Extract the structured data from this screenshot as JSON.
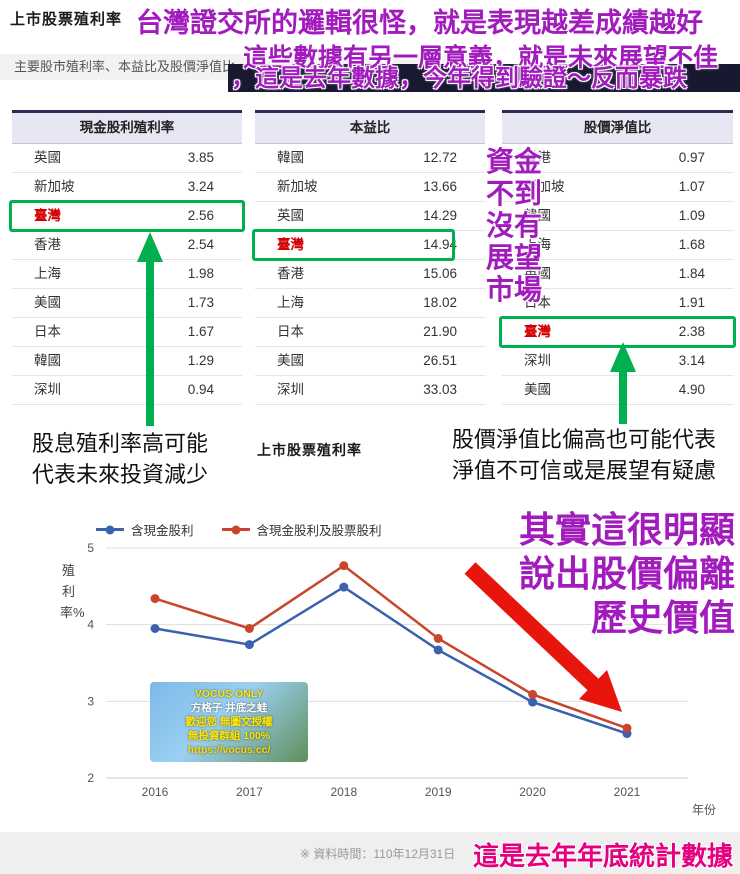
{
  "colors": {
    "annotation_purple": "#A21BBD",
    "annotation_magenta": "#E4007F",
    "highlight_green": "#00B050",
    "arrow_red": "#E8150D",
    "taiwan_red": "#D40000",
    "table_header_bg": "#E7E7F3"
  },
  "page": {
    "title": "上市股票殖利率",
    "subtitle": "主要股市殖利率、本益比及股價淨值比",
    "section2_title": "上市股票殖利率",
    "footnote": "※ 資料時間：110年12月31日"
  },
  "annotations": {
    "top": "台灣證交所的邏輯很怪，就是表現越差成績越好",
    "second_line1": "這些數據有另一層意義，就是未來展望不佳",
    "second_line2": "，這是去年數據，今年得到驗證～反而暴跌",
    "vertical": [
      "資金",
      "不到",
      "沒有",
      "展望",
      "市場"
    ],
    "left_note_line1": "股息殖利率高可能",
    "left_note_line2": "代表未來投資減少",
    "right_note_line1": "股價淨值比偏高也可能代表",
    "right_note_line2": "淨值不可信或是展望有疑慮",
    "chart_note_line1": "其實這很明顯",
    "chart_note_line2": "說出股價偏離",
    "chart_note_line3": "歷史價值",
    "bottom": "這是去年年底統計數據"
  },
  "tables": [
    {
      "header": "現金股利殖利率",
      "highlight_row": 2,
      "rows": [
        [
          "英國",
          "3.85"
        ],
        [
          "新加坡",
          "3.24"
        ],
        [
          "臺灣",
          "2.56"
        ],
        [
          "香港",
          "2.54"
        ],
        [
          "上海",
          "1.98"
        ],
        [
          "美國",
          "1.73"
        ],
        [
          "日本",
          "1.67"
        ],
        [
          "韓國",
          "1.29"
        ],
        [
          "深圳",
          "0.94"
        ]
      ]
    },
    {
      "header": "本益比",
      "highlight_row": 3,
      "rows": [
        [
          "韓國",
          "12.72"
        ],
        [
          "新加坡",
          "13.66"
        ],
        [
          "英國",
          "14.29"
        ],
        [
          "臺灣",
          "14.94"
        ],
        [
          "香港",
          "15.06"
        ],
        [
          "上海",
          "18.02"
        ],
        [
          "日本",
          "21.90"
        ],
        [
          "美國",
          "26.51"
        ],
        [
          "深圳",
          "33.03"
        ]
      ]
    },
    {
      "header": "股價淨值比",
      "highlight_row": 6,
      "rows": [
        [
          "香港",
          "0.97"
        ],
        [
          "新加坡",
          "1.07"
        ],
        [
          "韓國",
          "1.09"
        ],
        [
          "上海",
          "1.68"
        ],
        [
          "英國",
          "1.84"
        ],
        [
          "日本",
          "1.91"
        ],
        [
          "臺灣",
          "2.38"
        ],
        [
          "深圳",
          "3.14"
        ],
        [
          "美國",
          "4.90"
        ]
      ]
    }
  ],
  "watermark": {
    "lines": [
      {
        "text": "VOCUS ONLY",
        "color": "#ffe600"
      },
      {
        "text": "方格子 井底之蛙",
        "color": "#ffffff"
      },
      {
        "text": "歡迎您 無圖文授權",
        "color": "#ffe600"
      },
      {
        "text": "無投資群組 100%",
        "color": "#ffe600"
      },
      {
        "text": "https://vocus.cc/",
        "color": "#ffd800"
      }
    ]
  },
  "chart_data": {
    "type": "line",
    "title": "上市股票殖利率",
    "x": [
      2016,
      2017,
      2018,
      2019,
      2020,
      2021
    ],
    "series": [
      {
        "name": "含現金股利",
        "color": "#3A62AE",
        "values": [
          3.95,
          3.74,
          4.49,
          3.67,
          2.99,
          2.58
        ]
      },
      {
        "name": "含現金股利及股票股利",
        "color": "#C9452B",
        "values": [
          4.34,
          3.95,
          4.77,
          3.82,
          3.09,
          2.65
        ]
      }
    ],
    "ylabel": "殖利率%",
    "xlabel": "年份",
    "ylim": [
      2,
      5
    ],
    "yticks": [
      2,
      3,
      4,
      5
    ],
    "grid": true,
    "legend_position": "top"
  }
}
